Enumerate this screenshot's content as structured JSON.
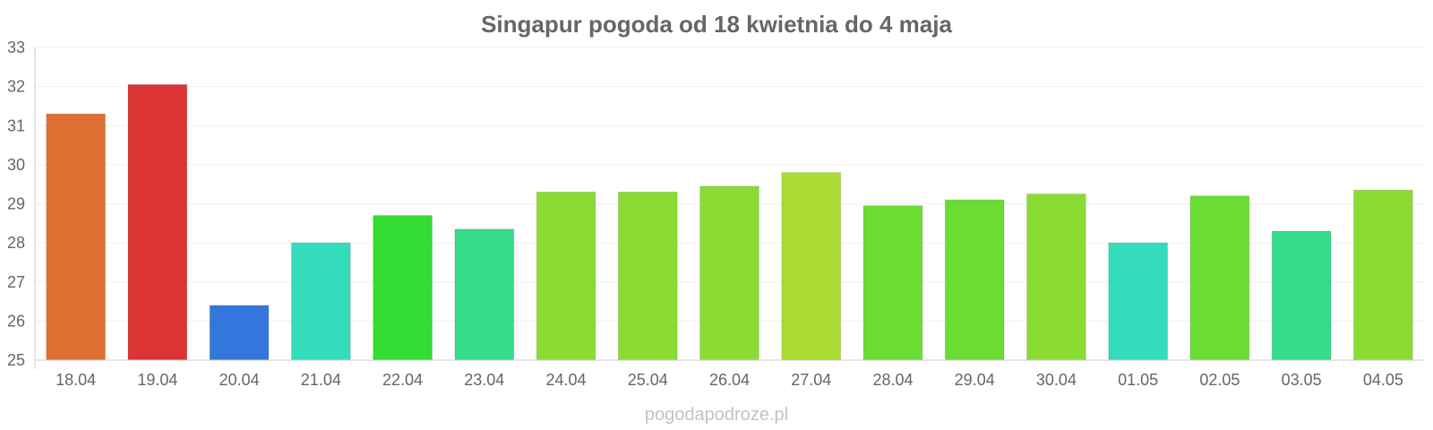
{
  "chart_data": {
    "type": "bar",
    "title": "Singapur pogoda od 18 kwietnia do 4 maja",
    "xlabel": "",
    "ylabel": "",
    "ylim": [
      25,
      33
    ],
    "yticks": [
      "25",
      "26",
      "27",
      "28",
      "29",
      "30",
      "31",
      "32",
      "33"
    ],
    "grid": true,
    "legend": "none",
    "categories": [
      "18.04",
      "19.04",
      "20.04",
      "21.04",
      "22.04",
      "23.04",
      "24.04",
      "25.04",
      "26.04",
      "27.04",
      "28.04",
      "29.04",
      "30.04",
      "01.05",
      "02.05",
      "03.05",
      "04.05"
    ],
    "values": [
      31.3,
      32.05,
      26.4,
      28.0,
      28.7,
      28.35,
      29.3,
      29.3,
      29.45,
      29.8,
      28.95,
      29.1,
      29.25,
      28.0,
      29.2,
      28.3,
      29.35
    ],
    "colors": [
      "#dd6f33",
      "#dc3434",
      "#3476dc",
      "#34dcbb",
      "#34dc34",
      "#34dc8a",
      "#8adc34",
      "#8adc34",
      "#8adc34",
      "#aadc34",
      "#6adc34",
      "#6adc34",
      "#8adc34",
      "#34dcbb",
      "#6adc34",
      "#34dc8a",
      "#8adc34"
    ]
  },
  "watermark": "pogodapodroze.pl"
}
